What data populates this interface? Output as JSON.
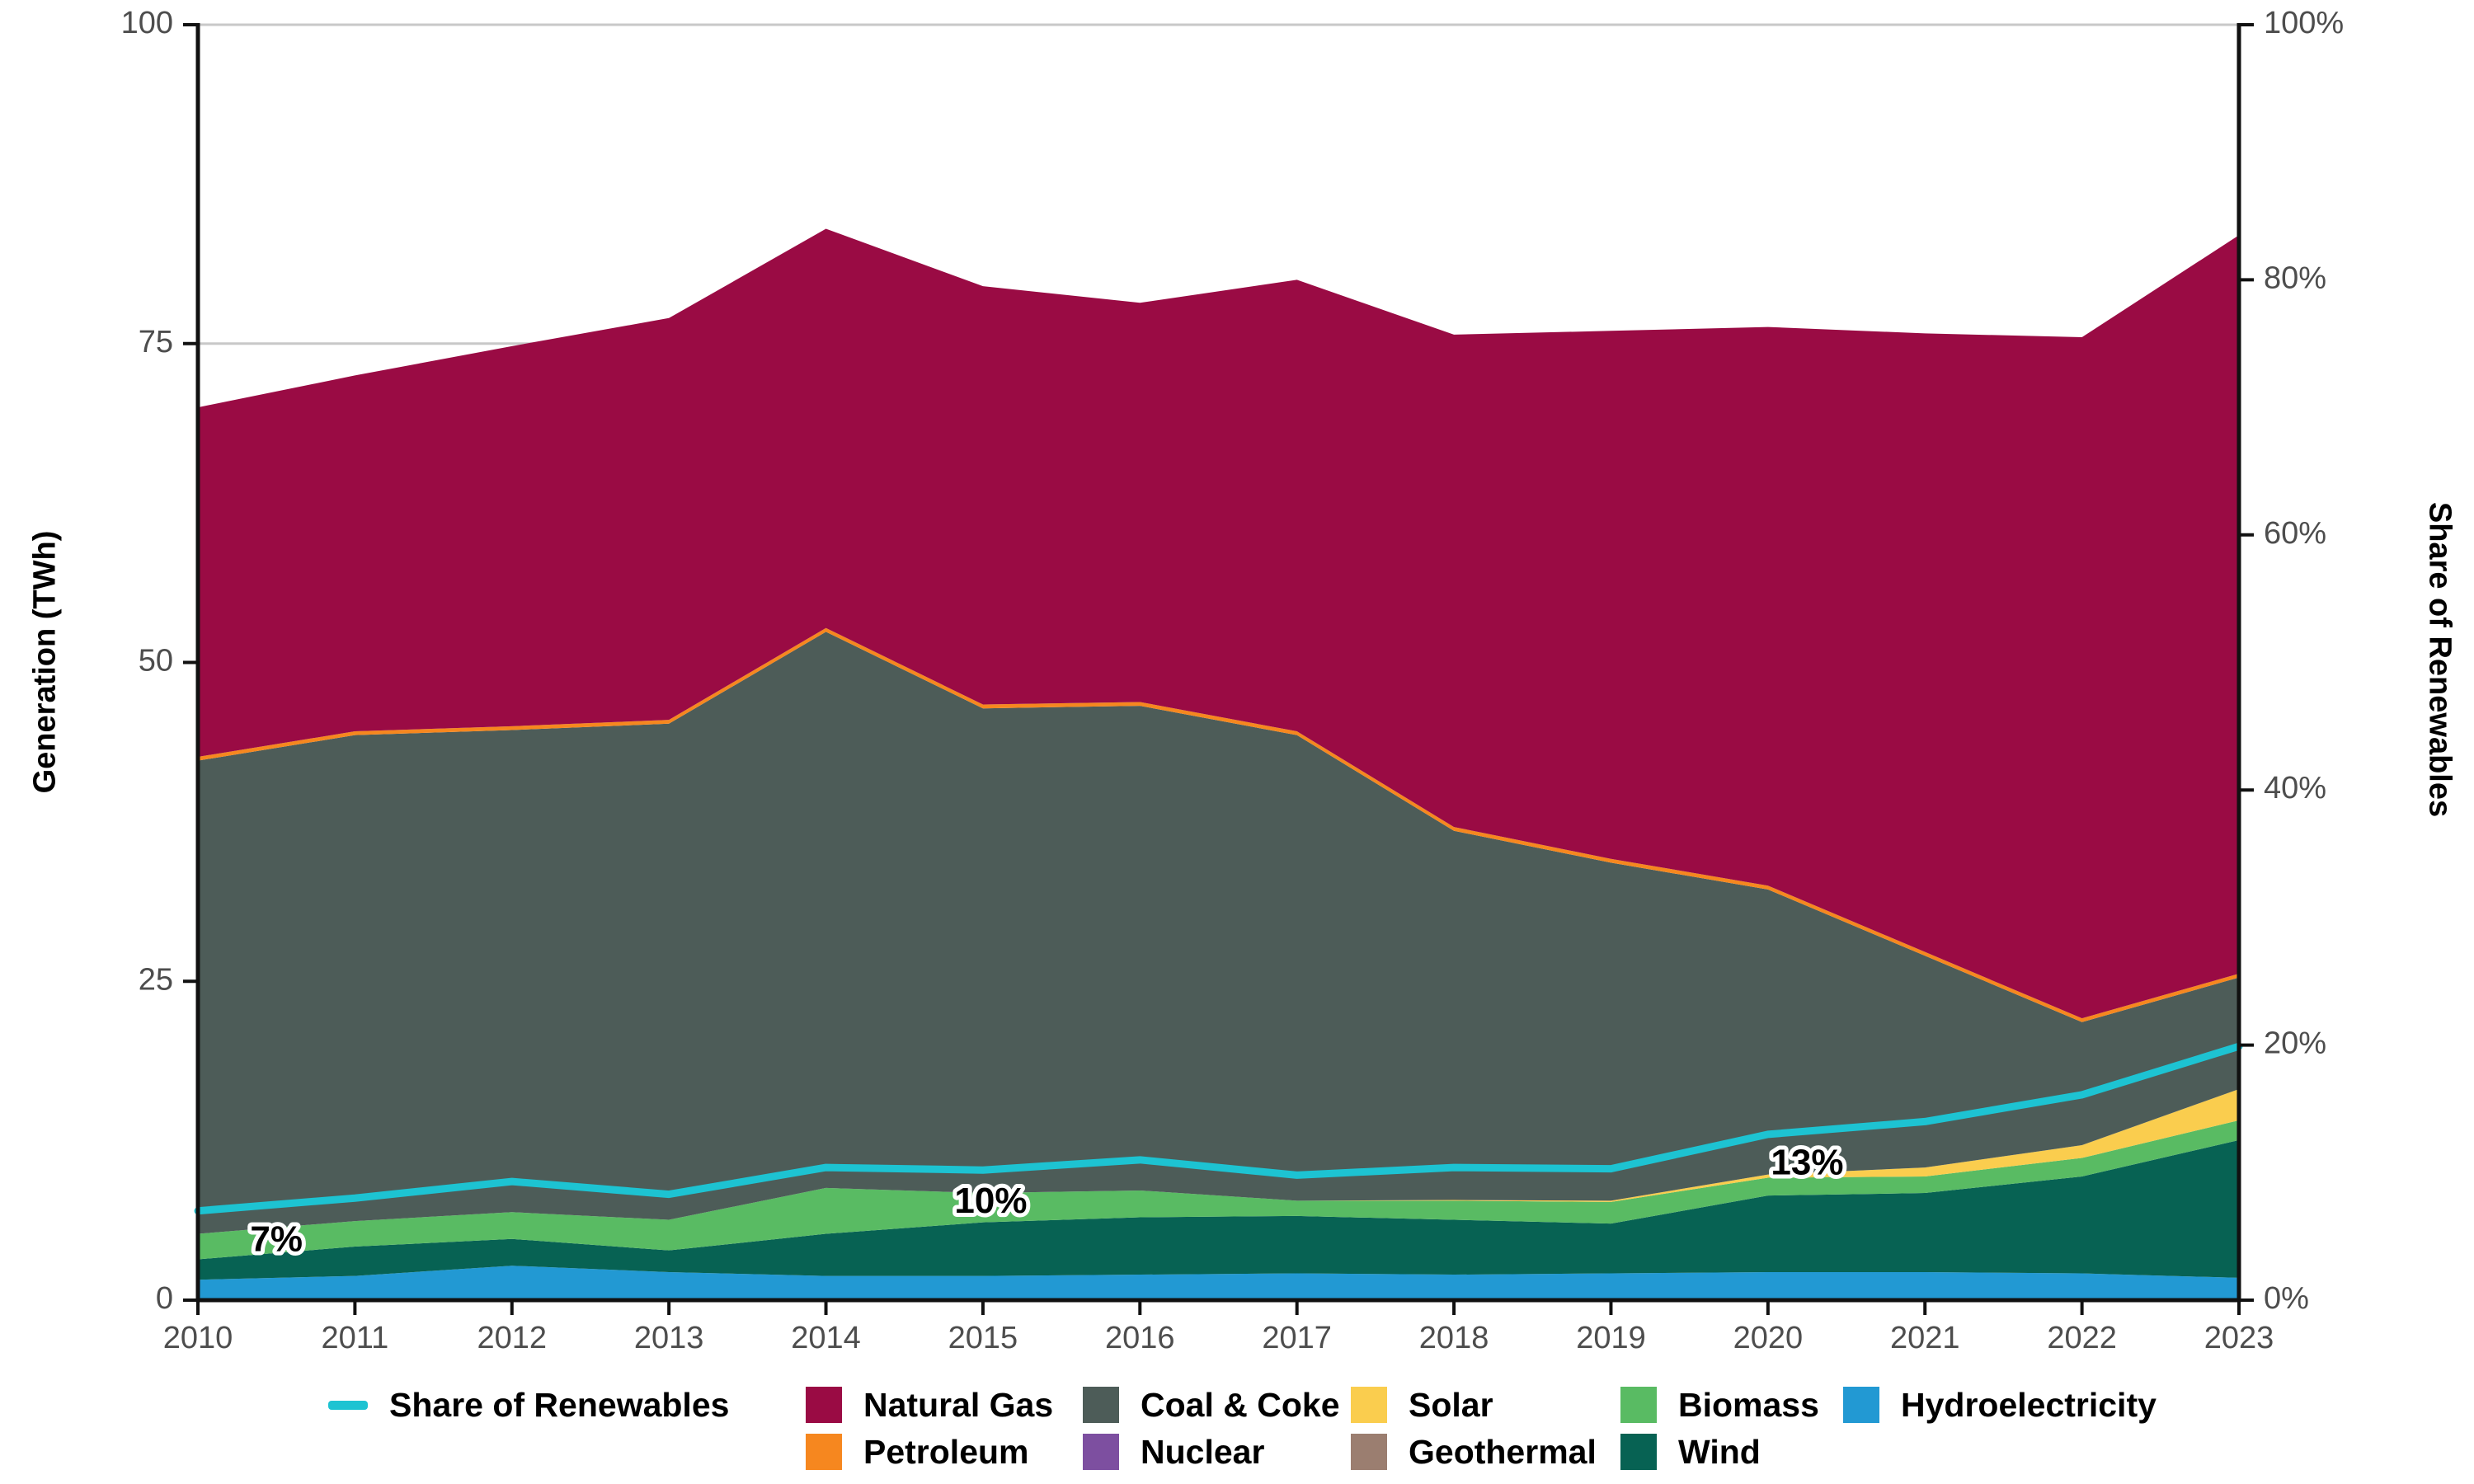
{
  "figure": {
    "left_axis_title": "Generation (TWh)",
    "right_axis_title": "Share of Renewables"
  },
  "chart_data": {
    "type": "area",
    "stacked": true,
    "title": "",
    "x": [
      2010,
      2011,
      2012,
      2013,
      2014,
      2015,
      2016,
      2017,
      2018,
      2019,
      2020,
      2021,
      2022,
      2023
    ],
    "x_tick_labels": [
      "2010",
      "2011",
      "2012",
      "2013",
      "2014",
      "2015",
      "2016",
      "2017",
      "2018",
      "2019",
      "2020",
      "2021",
      "2022",
      "2023"
    ],
    "left_axis": {
      "label": "Generation (TWh)",
      "ticks": [
        0,
        25,
        50,
        75,
        100
      ],
      "range": [
        0,
        100
      ]
    },
    "right_axis": {
      "label": "Share of Renewables",
      "tick_labels": [
        "0%",
        "20%",
        "40%",
        "60%",
        "80%",
        "100%"
      ],
      "tick_values": [
        0,
        20,
        40,
        60,
        80,
        100
      ],
      "range": [
        0,
        100
      ]
    },
    "grid": {
      "color": "#C8C8C8",
      "values": [
        25,
        50,
        75,
        100
      ]
    },
    "series": [
      {
        "name": "Hydroelectricity",
        "color": "#2299D3",
        "values": [
          1.6,
          1.9,
          2.7,
          2.2,
          1.9,
          1.9,
          2.0,
          2.1,
          2.0,
          2.1,
          2.2,
          2.2,
          2.1,
          1.75
        ]
      },
      {
        "name": "Wind",
        "color": "#076253",
        "values": [
          1.6,
          2.3,
          2.1,
          1.7,
          3.3,
          4.2,
          4.5,
          4.5,
          4.3,
          3.9,
          6.0,
          6.2,
          7.6,
          10.8
        ]
      },
      {
        "name": "Biomass",
        "color": "#59BB63",
        "values": [
          2.0,
          2.0,
          2.1,
          2.4,
          3.6,
          2.3,
          2.1,
          1.2,
          1.5,
          1.7,
          1.4,
          1.3,
          1.45,
          1.55
        ]
      },
      {
        "name": "Solar",
        "color": "#FACD4E",
        "values": [
          0,
          0,
          0,
          0,
          0,
          0,
          0,
          0,
          0.05,
          0.1,
          0.25,
          0.7,
          1.0,
          2.45
        ]
      },
      {
        "name": "Geothermal",
        "color": "#9B7E70",
        "values": [
          0,
          0,
          0,
          0,
          0,
          0,
          0,
          0,
          0,
          0,
          0,
          0,
          0,
          0
        ]
      },
      {
        "name": "Nuclear",
        "color": "#7D4FA0",
        "values": [
          0,
          0,
          0,
          0,
          0,
          0,
          0,
          0,
          0,
          0,
          0,
          0,
          0,
          0
        ]
      },
      {
        "name": "Coal & Coke",
        "color": "#4D5C58",
        "values": [
          37.1,
          38.1,
          37.8,
          38.9,
          43.6,
          38.0,
          38.0,
          36.5,
          28.95,
          26.5,
          22.35,
          16.6,
          9.65,
          8.75
        ]
      },
      {
        "name": "Petroleum",
        "color": "#F6871F",
        "values": [
          0.3,
          0.3,
          0.3,
          0.3,
          0.3,
          0.3,
          0.3,
          0.3,
          0.3,
          0.3,
          0.3,
          0.3,
          0.3,
          0.3
        ]
      },
      {
        "name": "Natural Gas",
        "color": "#9A0B44",
        "values": [
          27.4,
          27.9,
          29.8,
          31.5,
          31.3,
          32.8,
          31.3,
          35.4,
          38.6,
          41.4,
          43.8,
          48.5,
          53.4,
          57.9
        ]
      }
    ],
    "line_series": {
      "name": "Share of Renewables",
      "color": "#1DC3D2",
      "axis": "right",
      "values": [
        7.0,
        8.0,
        9.3,
        8.3,
        10.4,
        10.2,
        11.0,
        9.8,
        10.4,
        10.3,
        13.0,
        14.0,
        16.1,
        19.9
      ]
    },
    "annotations": [
      {
        "text": "7%",
        "year": 2010.5,
        "value": 4.6
      },
      {
        "text": "10%",
        "year": 2015.05,
        "value": 7.6
      },
      {
        "text": "13%",
        "year": 2020.25,
        "value": 10.6
      }
    ],
    "totals": [
      70.0,
      72.5,
      74.8,
      77.0,
      84.0,
      79.5,
      78.2,
      80.0,
      75.7,
      76.0,
      76.3,
      75.8,
      75.5,
      83.5
    ]
  },
  "legend": {
    "rows": [
      [
        {
          "label": "Share of Renewables",
          "color": "#1DC3D2",
          "type": "line"
        },
        {
          "label": "Natural Gas",
          "color": "#9A0B44",
          "type": "box"
        },
        {
          "label": "Coal & Coke",
          "color": "#4D5C58",
          "type": "box"
        },
        {
          "label": "Solar",
          "color": "#FACD4E",
          "type": "box"
        },
        {
          "label": "Biomass",
          "color": "#59BB63",
          "type": "box"
        },
        {
          "label": "Hydroelectricity",
          "color": "#2299D3",
          "type": "box"
        }
      ],
      [
        {
          "label": "Petroleum",
          "color": "#F6871F",
          "type": "box"
        },
        {
          "label": "Nuclear",
          "color": "#7D4FA0",
          "type": "box"
        },
        {
          "label": "Geothermal",
          "color": "#9B7E70",
          "type": "box"
        },
        {
          "label": "Wind",
          "color": "#076253",
          "type": "box"
        }
      ]
    ]
  },
  "style": {
    "tick_label_color": "#4D4D4D",
    "axis_color": "#111111",
    "annotation_halo": "#FFFFFF"
  }
}
